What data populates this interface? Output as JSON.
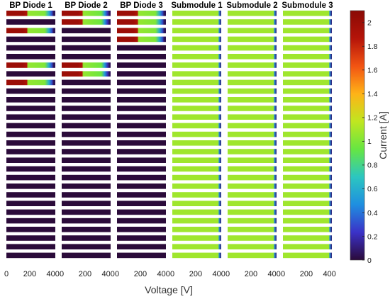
{
  "chart_data": {
    "type": "heatmap",
    "xlabel": "Voltage [V]",
    "xlim": [
      0,
      420
    ],
    "x_ticks": [
      "0",
      "200",
      "400"
    ],
    "colorbar": {
      "label": "Current [A]",
      "range": [
        0,
        2.1
      ],
      "ticks": [
        "0",
        "0.2",
        "0.4",
        "0.6",
        "0.8",
        "1",
        "1.2",
        "1.4",
        "1.6",
        "1.8",
        "2"
      ],
      "colormap": [
        "#2b0b3a",
        "#3b32c8",
        "#1f8fe0",
        "#2cc6c0",
        "#66e642",
        "#c0e620",
        "#ffb317",
        "#f25413",
        "#b51409",
        "#8a0a05"
      ]
    },
    "row_count": 29,
    "panels": [
      {
        "title": "BP Diode 1",
        "default_value": 0,
        "active_rows": [
          0,
          2,
          6,
          8
        ],
        "active_profile": [
          {
            "x": 0,
            "value": 2.0
          },
          {
            "x": 140,
            "value": 2.0
          },
          {
            "x": 175,
            "value": 1.9
          },
          {
            "x": 185,
            "value": 1.05
          },
          {
            "x": 330,
            "value": 1.0
          },
          {
            "x": 365,
            "value": 0.6
          },
          {
            "x": 390,
            "value": 0.3
          },
          {
            "x": 405,
            "value": 0.05
          }
        ]
      },
      {
        "title": "BP Diode 2",
        "default_value": 0,
        "active_rows": [
          0,
          1,
          6,
          7
        ],
        "active_profile": [
          {
            "x": 0,
            "value": 2.0
          },
          {
            "x": 140,
            "value": 2.0
          },
          {
            "x": 175,
            "value": 1.9
          },
          {
            "x": 185,
            "value": 1.05
          },
          {
            "x": 340,
            "value": 0.95
          },
          {
            "x": 370,
            "value": 0.5
          },
          {
            "x": 395,
            "value": 0.2
          },
          {
            "x": 410,
            "value": 0.05
          }
        ]
      },
      {
        "title": "BP Diode 3",
        "default_value": 0,
        "active_rows": [
          0,
          1,
          2,
          3
        ],
        "active_profile": [
          {
            "x": 0,
            "value": 2.0
          },
          {
            "x": 140,
            "value": 2.0
          },
          {
            "x": 175,
            "value": 1.9
          },
          {
            "x": 185,
            "value": 1.05
          },
          {
            "x": 330,
            "value": 1.0
          },
          {
            "x": 365,
            "value": 0.6
          },
          {
            "x": 390,
            "value": 0.3
          },
          {
            "x": 405,
            "value": 0.05
          }
        ]
      },
      {
        "title": "Submodule 1",
        "default_value": 1.08,
        "edge_x": 400,
        "edge_value": 0.5
      },
      {
        "title": "Submodule 2",
        "default_value": 1.08,
        "edge_x": 400,
        "edge_value": 0.5
      },
      {
        "title": "Submodule 3",
        "default_value": 1.08,
        "edge_x": 400,
        "edge_value": 0.5
      }
    ]
  }
}
